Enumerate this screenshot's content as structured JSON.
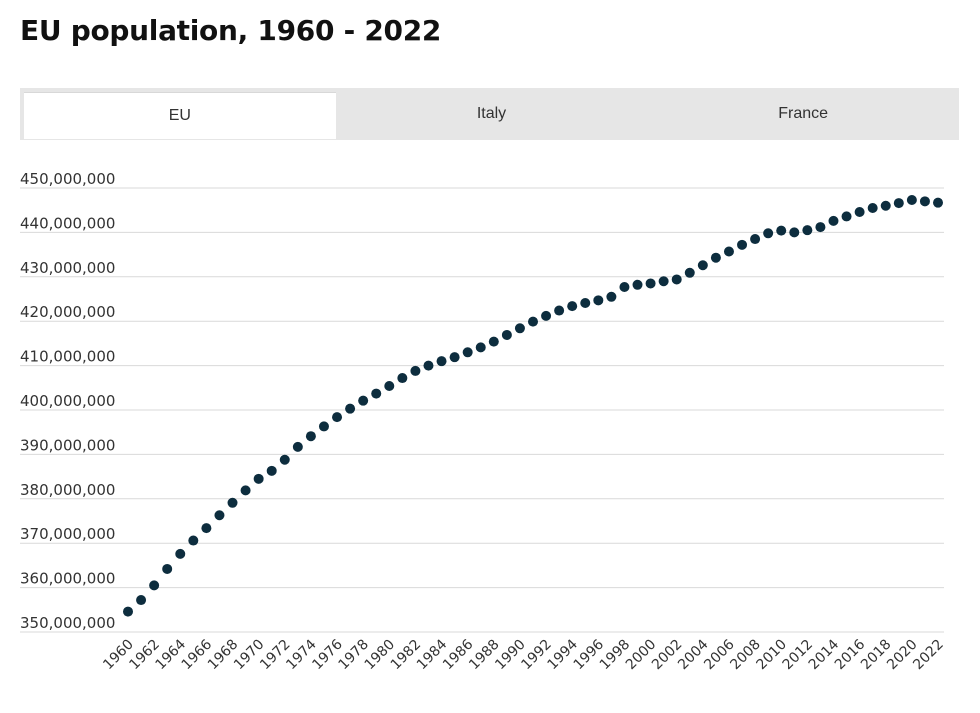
{
  "page": {
    "title": "EU population, 1960 - 2022"
  },
  "tabs": [
    {
      "label": "EU",
      "active": true
    },
    {
      "label": "Italy",
      "active": false
    },
    {
      "label": "France",
      "active": false
    }
  ],
  "colors": {
    "marker": "#0d2d3e",
    "tab_bar": "#e6e6e6",
    "gridline": "#d9d9d9"
  },
  "chart_data": {
    "type": "scatter",
    "title": "EU population, 1960 - 2022",
    "xlabel": "",
    "ylabel": "",
    "ylim": [
      350000000,
      450000000
    ],
    "y_ticks": [
      350000000,
      360000000,
      370000000,
      380000000,
      390000000,
      400000000,
      410000000,
      420000000,
      430000000,
      440000000,
      450000000
    ],
    "y_tick_labels": [
      "350,000,000",
      "360,000,000",
      "370,000,000",
      "380,000,000",
      "390,000,000",
      "400,000,000",
      "410,000,000",
      "420,000,000",
      "430,000,000",
      "440,000,000",
      "450,000,000"
    ],
    "x_tick_labels": [
      "1960",
      "1962",
      "1964",
      "1966",
      "1968",
      "1970",
      "1972",
      "1974",
      "1976",
      "1978",
      "1980",
      "1982",
      "1984",
      "1986",
      "1988",
      "1990",
      "1992",
      "1994",
      "1996",
      "1998",
      "2000",
      "2002",
      "2004",
      "2006",
      "2008",
      "2010",
      "2012",
      "2014",
      "2016",
      "2018",
      "2020",
      "2022"
    ],
    "grid": true,
    "series": [
      {
        "name": "EU",
        "x": [
          1960,
          1961,
          1962,
          1963,
          1964,
          1965,
          1966,
          1967,
          1968,
          1969,
          1970,
          1971,
          1972,
          1973,
          1974,
          1975,
          1976,
          1977,
          1978,
          1979,
          1980,
          1981,
          1982,
          1983,
          1984,
          1985,
          1986,
          1987,
          1988,
          1989,
          1990,
          1991,
          1992,
          1993,
          1994,
          1995,
          1996,
          1997,
          1998,
          1999,
          2000,
          2001,
          2002,
          2003,
          2004,
          2005,
          2006,
          2007,
          2008,
          2009,
          2010,
          2011,
          2012,
          2013,
          2014,
          2015,
          2016,
          2017,
          2018,
          2019,
          2020,
          2021,
          2022
        ],
        "values": [
          354600000,
          357200000,
          360500000,
          364200000,
          367600000,
          370600000,
          373400000,
          376300000,
          379100000,
          381900000,
          384500000,
          386300000,
          388800000,
          391700000,
          394100000,
          396300000,
          398400000,
          400300000,
          402100000,
          403700000,
          405400000,
          407200000,
          408800000,
          410000000,
          411000000,
          411900000,
          413000000,
          414100000,
          415400000,
          416900000,
          418400000,
          419900000,
          421200000,
          422400000,
          423400000,
          424100000,
          424700000,
          425500000,
          427700000,
          428200000,
          428500000,
          429000000,
          429400000,
          430900000,
          432600000,
          434300000,
          435700000,
          437200000,
          438500000,
          439800000,
          440400000,
          440000000,
          440500000,
          441200000,
          442600000,
          443600000,
          444600000,
          445500000,
          446000000,
          446600000,
          447300000,
          447000000,
          446700000
        ]
      }
    ]
  }
}
